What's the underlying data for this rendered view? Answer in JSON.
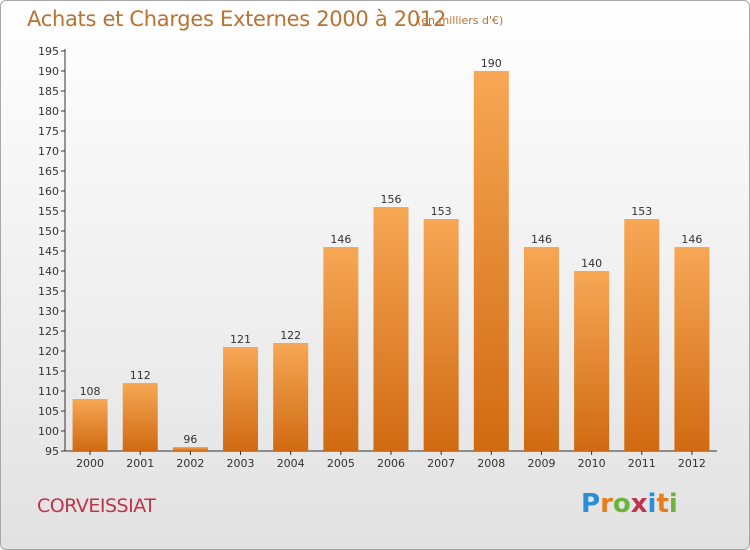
{
  "header": {
    "title": "Achats et Charges Externes 2000 à 2012",
    "subtitle": "(en milliers d'€)"
  },
  "footer": {
    "commune": "CORVEISSIAT",
    "logo": {
      "letters": [
        {
          "ch": "P",
          "color": "#2a8fd6"
        },
        {
          "ch": "r",
          "color": "#e87d1e"
        },
        {
          "ch": "o",
          "color": "#6cb33f"
        },
        {
          "ch": "x",
          "color": "#c0334a"
        },
        {
          "ch": "i",
          "color": "#2a8fd6"
        },
        {
          "ch": "t",
          "color": "#e87d1e"
        },
        {
          "ch": "i",
          "color": "#6cb33f"
        }
      ]
    }
  },
  "chart_data": {
    "type": "bar",
    "categories": [
      "2000",
      "2001",
      "2002",
      "2003",
      "2004",
      "2005",
      "2006",
      "2007",
      "2008",
      "2009",
      "2010",
      "2011",
      "2012"
    ],
    "values": [
      108,
      112,
      96,
      121,
      122,
      146,
      156,
      153,
      190,
      146,
      140,
      153,
      146
    ],
    "ylim": [
      95,
      195
    ],
    "ytick_step": 5,
    "grid": false,
    "legend": "none",
    "bar_color_top": "#f7a755",
    "bar_color_bottom": "#d06a12",
    "xlabel": "",
    "ylabel": ""
  }
}
